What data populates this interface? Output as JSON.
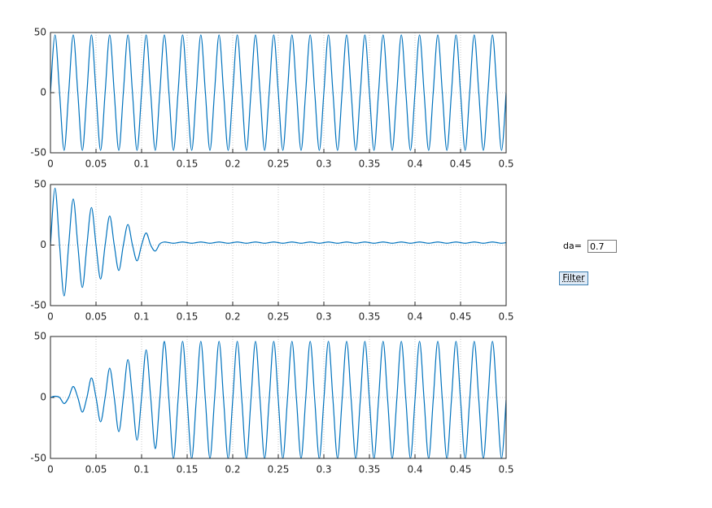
{
  "chart_data": [
    {
      "type": "line",
      "color": "#0072bd",
      "grid": true,
      "x": [
        0,
        0.005,
        0.01,
        0.015,
        0.02,
        0.025,
        0.03,
        0.035,
        0.04,
        0.045,
        0.05,
        0.055,
        0.06,
        0.065,
        0.07,
        0.075,
        0.08,
        0.085,
        0.09,
        0.095,
        0.1,
        0.105,
        0.11,
        0.115,
        0.12,
        0.125,
        0.13,
        0.135,
        0.14,
        0.145,
        0.15,
        0.155,
        0.16,
        0.165,
        0.17,
        0.175,
        0.18,
        0.185,
        0.19,
        0.195,
        0.2,
        0.205,
        0.21,
        0.215,
        0.22,
        0.225,
        0.23,
        0.235,
        0.24,
        0.245,
        0.25,
        0.255,
        0.26,
        0.265,
        0.27,
        0.275,
        0.28,
        0.285,
        0.29,
        0.295,
        0.3,
        0.305,
        0.31,
        0.315,
        0.32,
        0.325,
        0.33,
        0.335,
        0.34,
        0.345,
        0.35,
        0.355,
        0.36,
        0.365,
        0.37,
        0.375,
        0.38,
        0.385,
        0.39,
        0.395,
        0.4,
        0.405,
        0.41,
        0.415,
        0.42,
        0.425,
        0.43,
        0.435,
        0.44,
        0.445,
        0.45,
        0.455,
        0.46,
        0.465,
        0.47,
        0.475,
        0.48,
        0.485,
        0.49,
        0.495,
        0.5
      ],
      "values": [
        0,
        48,
        0,
        -48,
        0,
        48,
        0,
        -48,
        0,
        48,
        0,
        -48,
        0,
        48,
        0,
        -48,
        0,
        48,
        0,
        -48,
        0,
        48,
        0,
        -48,
        0,
        48,
        0,
        -48,
        0,
        48,
        0,
        -48,
        0,
        48,
        0,
        -48,
        0,
        48,
        0,
        -48,
        0,
        48,
        0,
        -48,
        0,
        48,
        0,
        -48,
        0,
        48,
        0,
        -48,
        0,
        48,
        0,
        -48,
        0,
        48,
        0,
        -48,
        0,
        48,
        0,
        -48,
        0,
        48,
        0,
        -48,
        0,
        48,
        0,
        -48,
        0,
        48,
        0,
        -48,
        0,
        48,
        0,
        -48,
        0,
        48,
        0,
        -48,
        0,
        48,
        0,
        -48,
        0,
        48,
        0,
        -48,
        0,
        48,
        0,
        -48,
        0,
        48,
        0,
        -48,
        0
      ],
      "xlim": [
        0,
        0.5
      ],
      "xticks": [
        0,
        0.05,
        0.1,
        0.15,
        0.2,
        0.25,
        0.3,
        0.35,
        0.4,
        0.45,
        0.5
      ],
      "ylim": [
        -50,
        50
      ],
      "yticks": [
        -50,
        0,
        50
      ]
    },
    {
      "type": "line",
      "color": "#0072bd",
      "grid": true,
      "x": [
        0,
        0.005,
        0.01,
        0.015,
        0.02,
        0.025,
        0.03,
        0.035,
        0.04,
        0.045,
        0.05,
        0.055,
        0.06,
        0.065,
        0.07,
        0.075,
        0.08,
        0.085,
        0.09,
        0.095,
        0.1,
        0.105,
        0.11,
        0.115,
        0.12,
        0.125,
        0.13,
        0.135,
        0.14,
        0.145,
        0.15,
        0.155,
        0.16,
        0.165,
        0.17,
        0.175,
        0.18,
        0.185,
        0.19,
        0.195,
        0.2,
        0.205,
        0.21,
        0.215,
        0.22,
        0.225,
        0.23,
        0.235,
        0.24,
        0.245,
        0.25,
        0.255,
        0.26,
        0.265,
        0.27,
        0.275,
        0.28,
        0.285,
        0.29,
        0.295,
        0.3,
        0.305,
        0.31,
        0.315,
        0.32,
        0.325,
        0.33,
        0.335,
        0.34,
        0.345,
        0.35,
        0.355,
        0.36,
        0.365,
        0.37,
        0.375,
        0.38,
        0.385,
        0.39,
        0.395,
        0.4,
        0.405,
        0.41,
        0.415,
        0.42,
        0.425,
        0.43,
        0.435,
        0.44,
        0.445,
        0.45,
        0.455,
        0.46,
        0.465,
        0.47,
        0.475,
        0.48,
        0.485,
        0.49,
        0.495,
        0.5
      ],
      "values": [
        0,
        47,
        0,
        -42,
        0,
        38,
        0,
        -35,
        0,
        31,
        0,
        -28,
        0,
        24,
        0,
        -21,
        0,
        17,
        0,
        -13,
        0,
        10,
        0,
        -5,
        1,
        2.5,
        2,
        1.5,
        2,
        2.5,
        2,
        1.5,
        2,
        2.5,
        2,
        1.5,
        2,
        2.5,
        2,
        1.5,
        2,
        2.5,
        2,
        1.5,
        2,
        2.5,
        2,
        1.5,
        2,
        2.5,
        2,
        1.5,
        2,
        2.5,
        2,
        1.5,
        2,
        2.5,
        2,
        1.5,
        2,
        2.5,
        2,
        1.5,
        2,
        2.5,
        2,
        1.5,
        2,
        2.5,
        2,
        1.5,
        2,
        2.5,
        2,
        1.5,
        2,
        2.5,
        2,
        1.5,
        2,
        2.5,
        2,
        1.5,
        2,
        2.5,
        2,
        1.5,
        2,
        2.5,
        2,
        1.5,
        2,
        2.5,
        2,
        1.5,
        2,
        2.5,
        2,
        1.5,
        2
      ],
      "xlim": [
        0,
        0.5
      ],
      "xticks": [
        0,
        0.05,
        0.1,
        0.15,
        0.2,
        0.25,
        0.3,
        0.35,
        0.4,
        0.45,
        0.5
      ],
      "ylim": [
        -50,
        50
      ],
      "yticks": [
        -50,
        0,
        50
      ]
    },
    {
      "type": "line",
      "color": "#0072bd",
      "grid": true,
      "x": [
        0,
        0.005,
        0.01,
        0.015,
        0.02,
        0.025,
        0.03,
        0.035,
        0.04,
        0.045,
        0.05,
        0.055,
        0.06,
        0.065,
        0.07,
        0.075,
        0.08,
        0.085,
        0.09,
        0.095,
        0.1,
        0.105,
        0.11,
        0.115,
        0.12,
        0.125,
        0.13,
        0.135,
        0.14,
        0.145,
        0.15,
        0.155,
        0.16,
        0.165,
        0.17,
        0.175,
        0.18,
        0.185,
        0.19,
        0.195,
        0.2,
        0.205,
        0.21,
        0.215,
        0.22,
        0.225,
        0.23,
        0.235,
        0.24,
        0.245,
        0.25,
        0.255,
        0.26,
        0.265,
        0.27,
        0.275,
        0.28,
        0.285,
        0.29,
        0.295,
        0.3,
        0.305,
        0.31,
        0.315,
        0.32,
        0.325,
        0.33,
        0.335,
        0.34,
        0.345,
        0.35,
        0.355,
        0.36,
        0.365,
        0.37,
        0.375,
        0.38,
        0.385,
        0.39,
        0.395,
        0.4,
        0.405,
        0.41,
        0.415,
        0.42,
        0.425,
        0.43,
        0.435,
        0.44,
        0.445,
        0.45,
        0.455,
        0.46,
        0.465,
        0.47,
        0.475,
        0.48,
        0.485,
        0.49,
        0.495,
        0.5
      ],
      "values": [
        0,
        1,
        0,
        -5,
        0,
        9,
        0,
        -12,
        0,
        16,
        0,
        -20,
        0,
        24,
        0,
        -28,
        0,
        31,
        0,
        -35,
        0,
        39,
        0,
        -42,
        -1,
        46,
        -2,
        -50,
        -2,
        46,
        -2,
        -50,
        -2,
        46,
        -2,
        -50,
        -2,
        46,
        -2,
        -50,
        -2,
        46,
        -2,
        -50,
        -2,
        46,
        -2,
        -50,
        -2,
        46,
        -2,
        -50,
        -2,
        46,
        -2,
        -50,
        -2,
        46,
        -2,
        -50,
        -2,
        46,
        -2,
        -50,
        -2,
        46,
        -2,
        -50,
        -2,
        46,
        -2,
        -50,
        -2,
        46,
        -2,
        -50,
        -2,
        46,
        -2,
        -50,
        -2,
        46,
        -2,
        -50,
        -2,
        46,
        -2,
        -50,
        -2,
        46,
        -2,
        -50,
        -2,
        46,
        -2,
        -50,
        -2,
        46,
        -2,
        -50,
        -2
      ],
      "xlim": [
        0,
        0.5
      ],
      "xticks": [
        0,
        0.05,
        0.1,
        0.15,
        0.2,
        0.25,
        0.3,
        0.35,
        0.4,
        0.45,
        0.5
      ],
      "ylim": [
        -50,
        50
      ],
      "yticks": [
        -50,
        0,
        50
      ]
    }
  ],
  "controls": {
    "label": "da=",
    "value": "0.7",
    "button": "Filter"
  }
}
